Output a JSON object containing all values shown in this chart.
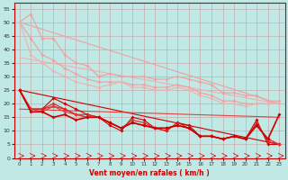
{
  "xlabel": "Vent moyen/en rafales ( km/h )",
  "bg_color": "#c0e8e4",
  "grid_color": "#c8a0a0",
  "xlim": [
    -0.5,
    23.5
  ],
  "ylim": [
    0,
    57
  ],
  "yticks": [
    0,
    5,
    10,
    15,
    20,
    25,
    30,
    35,
    40,
    45,
    50,
    55
  ],
  "xticks": [
    0,
    1,
    2,
    3,
    4,
    5,
    6,
    7,
    8,
    9,
    10,
    11,
    12,
    13,
    14,
    15,
    16,
    17,
    18,
    19,
    20,
    21,
    22,
    23
  ],
  "lines_light": [
    {
      "x": [
        0,
        1,
        2,
        3,
        4,
        5,
        6,
        7,
        8,
        9,
        10,
        11,
        12,
        13,
        14,
        15,
        16,
        17,
        18,
        19,
        20,
        21,
        22,
        23
      ],
      "y": [
        50,
        53,
        44,
        44,
        38,
        35,
        34,
        30,
        31,
        30,
        30,
        30,
        29,
        29,
        30,
        29,
        28,
        27,
        24,
        24,
        23,
        23,
        21,
        21
      ],
      "color": "#f0a0a0",
      "lw": 0.8
    },
    {
      "x": [
        0,
        1,
        2,
        3,
        4,
        5,
        6,
        7,
        8,
        9,
        10,
        11,
        12,
        13,
        14,
        15,
        16,
        17,
        18,
        19,
        20,
        21,
        22,
        23
      ],
      "y": [
        50,
        44,
        38,
        36,
        33,
        31,
        29,
        28,
        28,
        28,
        27,
        27,
        26,
        26,
        27,
        26,
        24,
        23,
        21,
        21,
        20,
        20,
        20,
        20
      ],
      "color": "#f0a0a0",
      "lw": 0.8
    },
    {
      "x": [
        0,
        1,
        2,
        3,
        4,
        5,
        6,
        7,
        8,
        9,
        10,
        11,
        12,
        13,
        14,
        15,
        16,
        17,
        18,
        19,
        20,
        21,
        22,
        23
      ],
      "y": [
        50,
        38,
        35,
        32,
        30,
        28,
        27,
        26,
        27,
        28,
        26,
        26,
        25,
        25,
        26,
        25,
        23,
        22,
        20,
        20,
        19,
        20,
        20,
        20
      ],
      "color": "#f0b0b0",
      "lw": 0.8
    }
  ],
  "lines_straight_light": [
    {
      "x": [
        0,
        23
      ],
      "y": [
        50,
        20
      ],
      "color": "#f0a0a0",
      "lw": 0.8
    },
    {
      "x": [
        0,
        23
      ],
      "y": [
        37,
        20
      ],
      "color": "#f0b0b0",
      "lw": 0.8
    }
  ],
  "lines_dark": [
    {
      "x": [
        0,
        1,
        2,
        3,
        4,
        5,
        6,
        7,
        8,
        9,
        10,
        11,
        12,
        13,
        14,
        15,
        16,
        17,
        18,
        19,
        20,
        21,
        22,
        23
      ],
      "y": [
        25,
        18,
        18,
        22,
        20,
        18,
        16,
        15,
        12,
        10,
        15,
        14,
        11,
        10,
        13,
        12,
        8,
        8,
        7,
        8,
        7,
        14,
        5,
        5
      ],
      "color": "#cc0000",
      "lw": 0.8
    },
    {
      "x": [
        0,
        1,
        2,
        3,
        4,
        5,
        6,
        7,
        8,
        9,
        10,
        11,
        12,
        13,
        14,
        15,
        16,
        17,
        18,
        19,
        20,
        21,
        22,
        23
      ],
      "y": [
        25,
        18,
        18,
        20,
        18,
        16,
        16,
        15,
        13,
        11,
        14,
        13,
        11,
        10,
        13,
        11,
        8,
        8,
        7,
        8,
        7,
        13,
        6,
        5
      ],
      "color": "#dd2222",
      "lw": 0.8
    },
    {
      "x": [
        0,
        1,
        2,
        3,
        4,
        5,
        6,
        7,
        8,
        9,
        10,
        11,
        12,
        13,
        14,
        15,
        16,
        17,
        18,
        19,
        20,
        21,
        22,
        23
      ],
      "y": [
        25,
        18,
        18,
        19,
        18,
        16,
        15,
        15,
        13,
        11,
        13,
        12,
        11,
        11,
        12,
        11,
        8,
        8,
        7,
        8,
        7,
        12,
        7,
        5
      ],
      "color": "#dd2222",
      "lw": 0.8
    },
    {
      "x": [
        0,
        1,
        2,
        3,
        4,
        5,
        6,
        7,
        8,
        9,
        10,
        11,
        12,
        13,
        14,
        15,
        16,
        17,
        18,
        19,
        20,
        21,
        22,
        23
      ],
      "y": [
        25,
        18,
        17,
        19,
        17,
        16,
        15,
        15,
        13,
        11,
        13,
        12,
        11,
        11,
        12,
        11,
        8,
        8,
        7,
        8,
        7,
        12,
        7,
        5
      ],
      "color": "#ee3333",
      "lw": 0.8
    },
    {
      "x": [
        0,
        1,
        2,
        3,
        4,
        5,
        6,
        7,
        8,
        9,
        10,
        11,
        12,
        13,
        14,
        15,
        16,
        17,
        18,
        19,
        20,
        21,
        22,
        23
      ],
      "y": [
        25,
        17,
        17,
        15,
        16,
        14,
        15,
        15,
        13,
        11,
        13,
        12,
        11,
        11,
        12,
        11,
        8,
        8,
        7,
        8,
        7,
        12,
        7,
        16
      ],
      "color": "#cc0000",
      "lw": 1.2
    }
  ],
  "lines_straight_dark": [
    {
      "x": [
        0,
        23
      ],
      "y": [
        25,
        5
      ],
      "color": "#cc0000",
      "lw": 0.8
    },
    {
      "x": [
        0,
        23
      ],
      "y": [
        18,
        15
      ],
      "color": "#dd4444",
      "lw": 0.8
    }
  ],
  "marker_size": 2.0,
  "arrow_color": "#cc0000"
}
